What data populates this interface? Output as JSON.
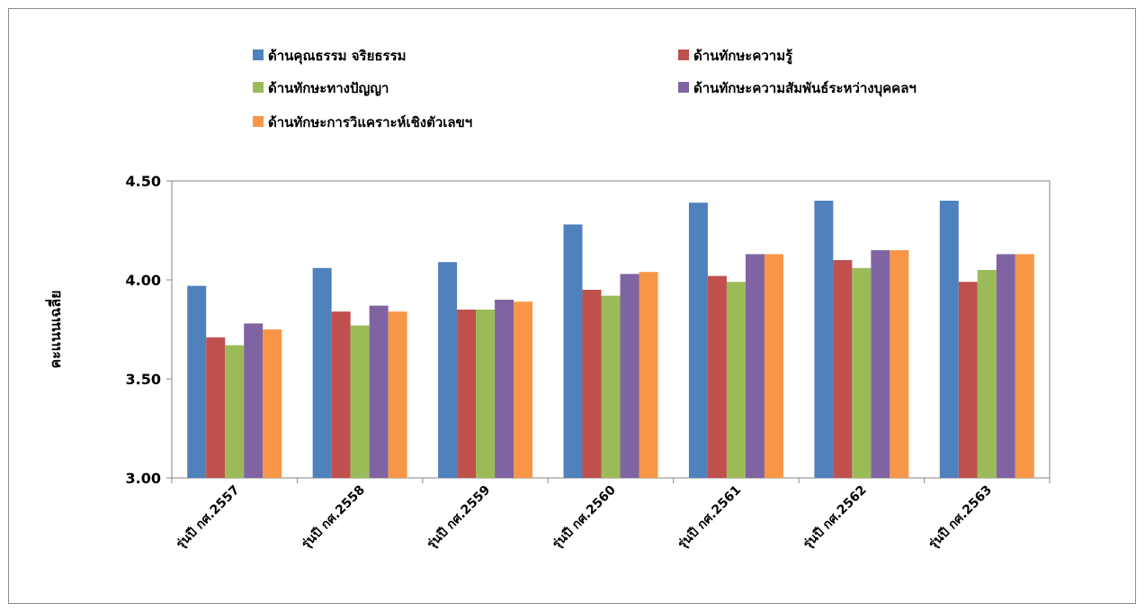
{
  "chart_data": {
    "type": "bar",
    "title": "",
    "xlabel": "",
    "ylabel": "คะแนนเฉลี่ย",
    "ylim": [
      3.0,
      4.5
    ],
    "yticks": [
      "3.00",
      "3.50",
      "4.00",
      "4.50"
    ],
    "yticks_values": [
      3.0,
      3.5,
      4.0,
      4.5
    ],
    "grid": false,
    "legend_position": "top",
    "categories": [
      "รุ่นปี กศ.2557",
      "รุ่นปี กศ.2558",
      "รุ่นปี กศ.2559",
      "รุ่นปี กศ.2560",
      "รุ่นปี กศ.2561",
      "รุ่นปี กศ.2562",
      "รุ่นปี กศ.2563"
    ],
    "series": [
      {
        "name": "ด้านคุณธรรม จริยธรรม",
        "color": "#4f81bd",
        "values": [
          3.97,
          4.06,
          4.09,
          4.28,
          4.39,
          4.4,
          4.4
        ]
      },
      {
        "name": "ด้านทักษะความรู้",
        "color": "#c0504d",
        "values": [
          3.71,
          3.84,
          3.85,
          3.95,
          4.02,
          4.1,
          3.99
        ]
      },
      {
        "name": "ด้านทักษะทางปัญญา",
        "color": "#9bbb59",
        "values": [
          3.67,
          3.77,
          3.85,
          3.92,
          3.99,
          4.06,
          4.05
        ]
      },
      {
        "name": "ด้านทักษะความสัมพันธ์ระหว่างบุคคลฯ",
        "color": "#8064a2",
        "values": [
          3.78,
          3.87,
          3.9,
          4.03,
          4.13,
          4.15,
          4.13
        ]
      },
      {
        "name": "ด้านทักษะการวิแคราะห์เชิงตัวเลขฯ",
        "color": "#f79646",
        "values": [
          3.75,
          3.84,
          3.89,
          4.04,
          4.13,
          4.15,
          4.13
        ]
      }
    ]
  }
}
